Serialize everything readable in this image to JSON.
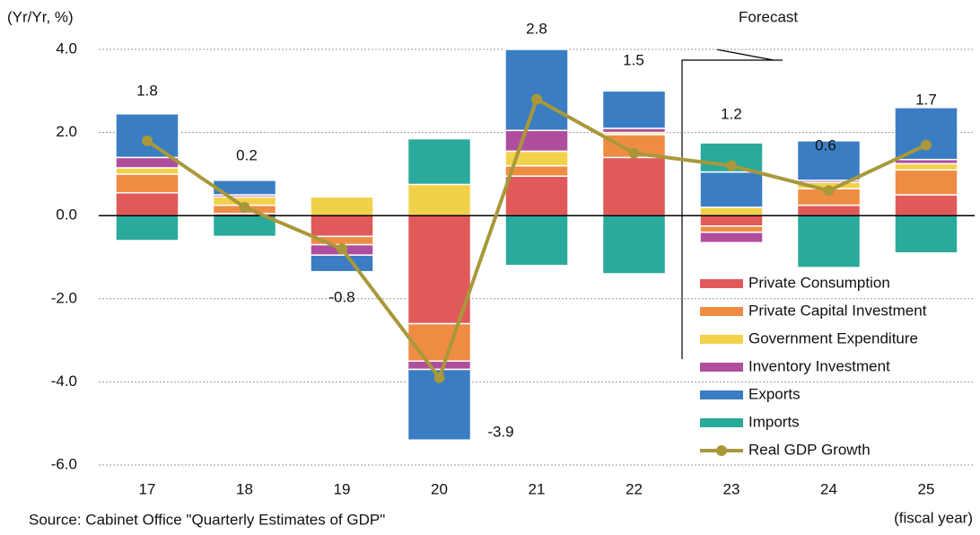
{
  "chart_data": {
    "type": "stacked_bar_line",
    "y_axis_label": "(Yr/Yr, %)",
    "x_axis_label": "(fiscal year)",
    "source": "Source: Cabinet Office \"Quarterly Estimates of GDP\"",
    "annotation": "Forecast",
    "categories": [
      "17",
      "18",
      "19",
      "20",
      "21",
      "22",
      "23",
      "24",
      "25"
    ],
    "ylim": [
      -6,
      4
    ],
    "yticks": [
      {
        "value": -6,
        "label": "-6.0"
      },
      {
        "value": -4,
        "label": "-4.0"
      },
      {
        "value": -2,
        "label": "-2.0"
      },
      {
        "value": 0,
        "label": "0.0"
      },
      {
        "value": 2,
        "label": "2.0"
      },
      {
        "value": 4,
        "label": "4.0"
      }
    ],
    "grid": true,
    "series": [
      {
        "name": "Private Consumption",
        "color": "#e05a5a",
        "values": [
          0.55,
          0.05,
          -0.5,
          -2.6,
          0.95,
          1.4,
          -0.25,
          0.25,
          0.5
        ]
      },
      {
        "name": "Private Capital Investment",
        "color": "#ef8c44",
        "values": [
          0.45,
          0.2,
          -0.2,
          -0.9,
          0.25,
          0.55,
          -0.15,
          0.4,
          0.6
        ]
      },
      {
        "name": "Government Expenditure",
        "color": "#f2d14a",
        "values": [
          0.15,
          0.2,
          0.45,
          0.75,
          0.35,
          0.05,
          0.2,
          0.15,
          0.15
        ]
      },
      {
        "name": "Inventory Investment",
        "color": "#b04e9e",
        "values": [
          0.25,
          0.05,
          -0.25,
          -0.2,
          0.5,
          0.1,
          -0.25,
          0.05,
          0.1
        ]
      },
      {
        "name": "Exports",
        "color": "#3a7dc2",
        "values": [
          1.05,
          0.35,
          -0.4,
          -1.7,
          1.95,
          0.9,
          0.85,
          0.95,
          1.25
        ]
      },
      {
        "name": "Imports",
        "color": "#2aaa9a",
        "values": [
          -0.6,
          -0.5,
          0,
          1.1,
          -1.2,
          -1.4,
          0.7,
          -1.25,
          -0.9
        ]
      }
    ],
    "line": {
      "name": "Real GDP Growth",
      "color": "#a8983a",
      "values": [
        1.8,
        0.2,
        -0.8,
        -3.9,
        2.8,
        1.5,
        1.2,
        0.6,
        1.7
      ]
    }
  }
}
